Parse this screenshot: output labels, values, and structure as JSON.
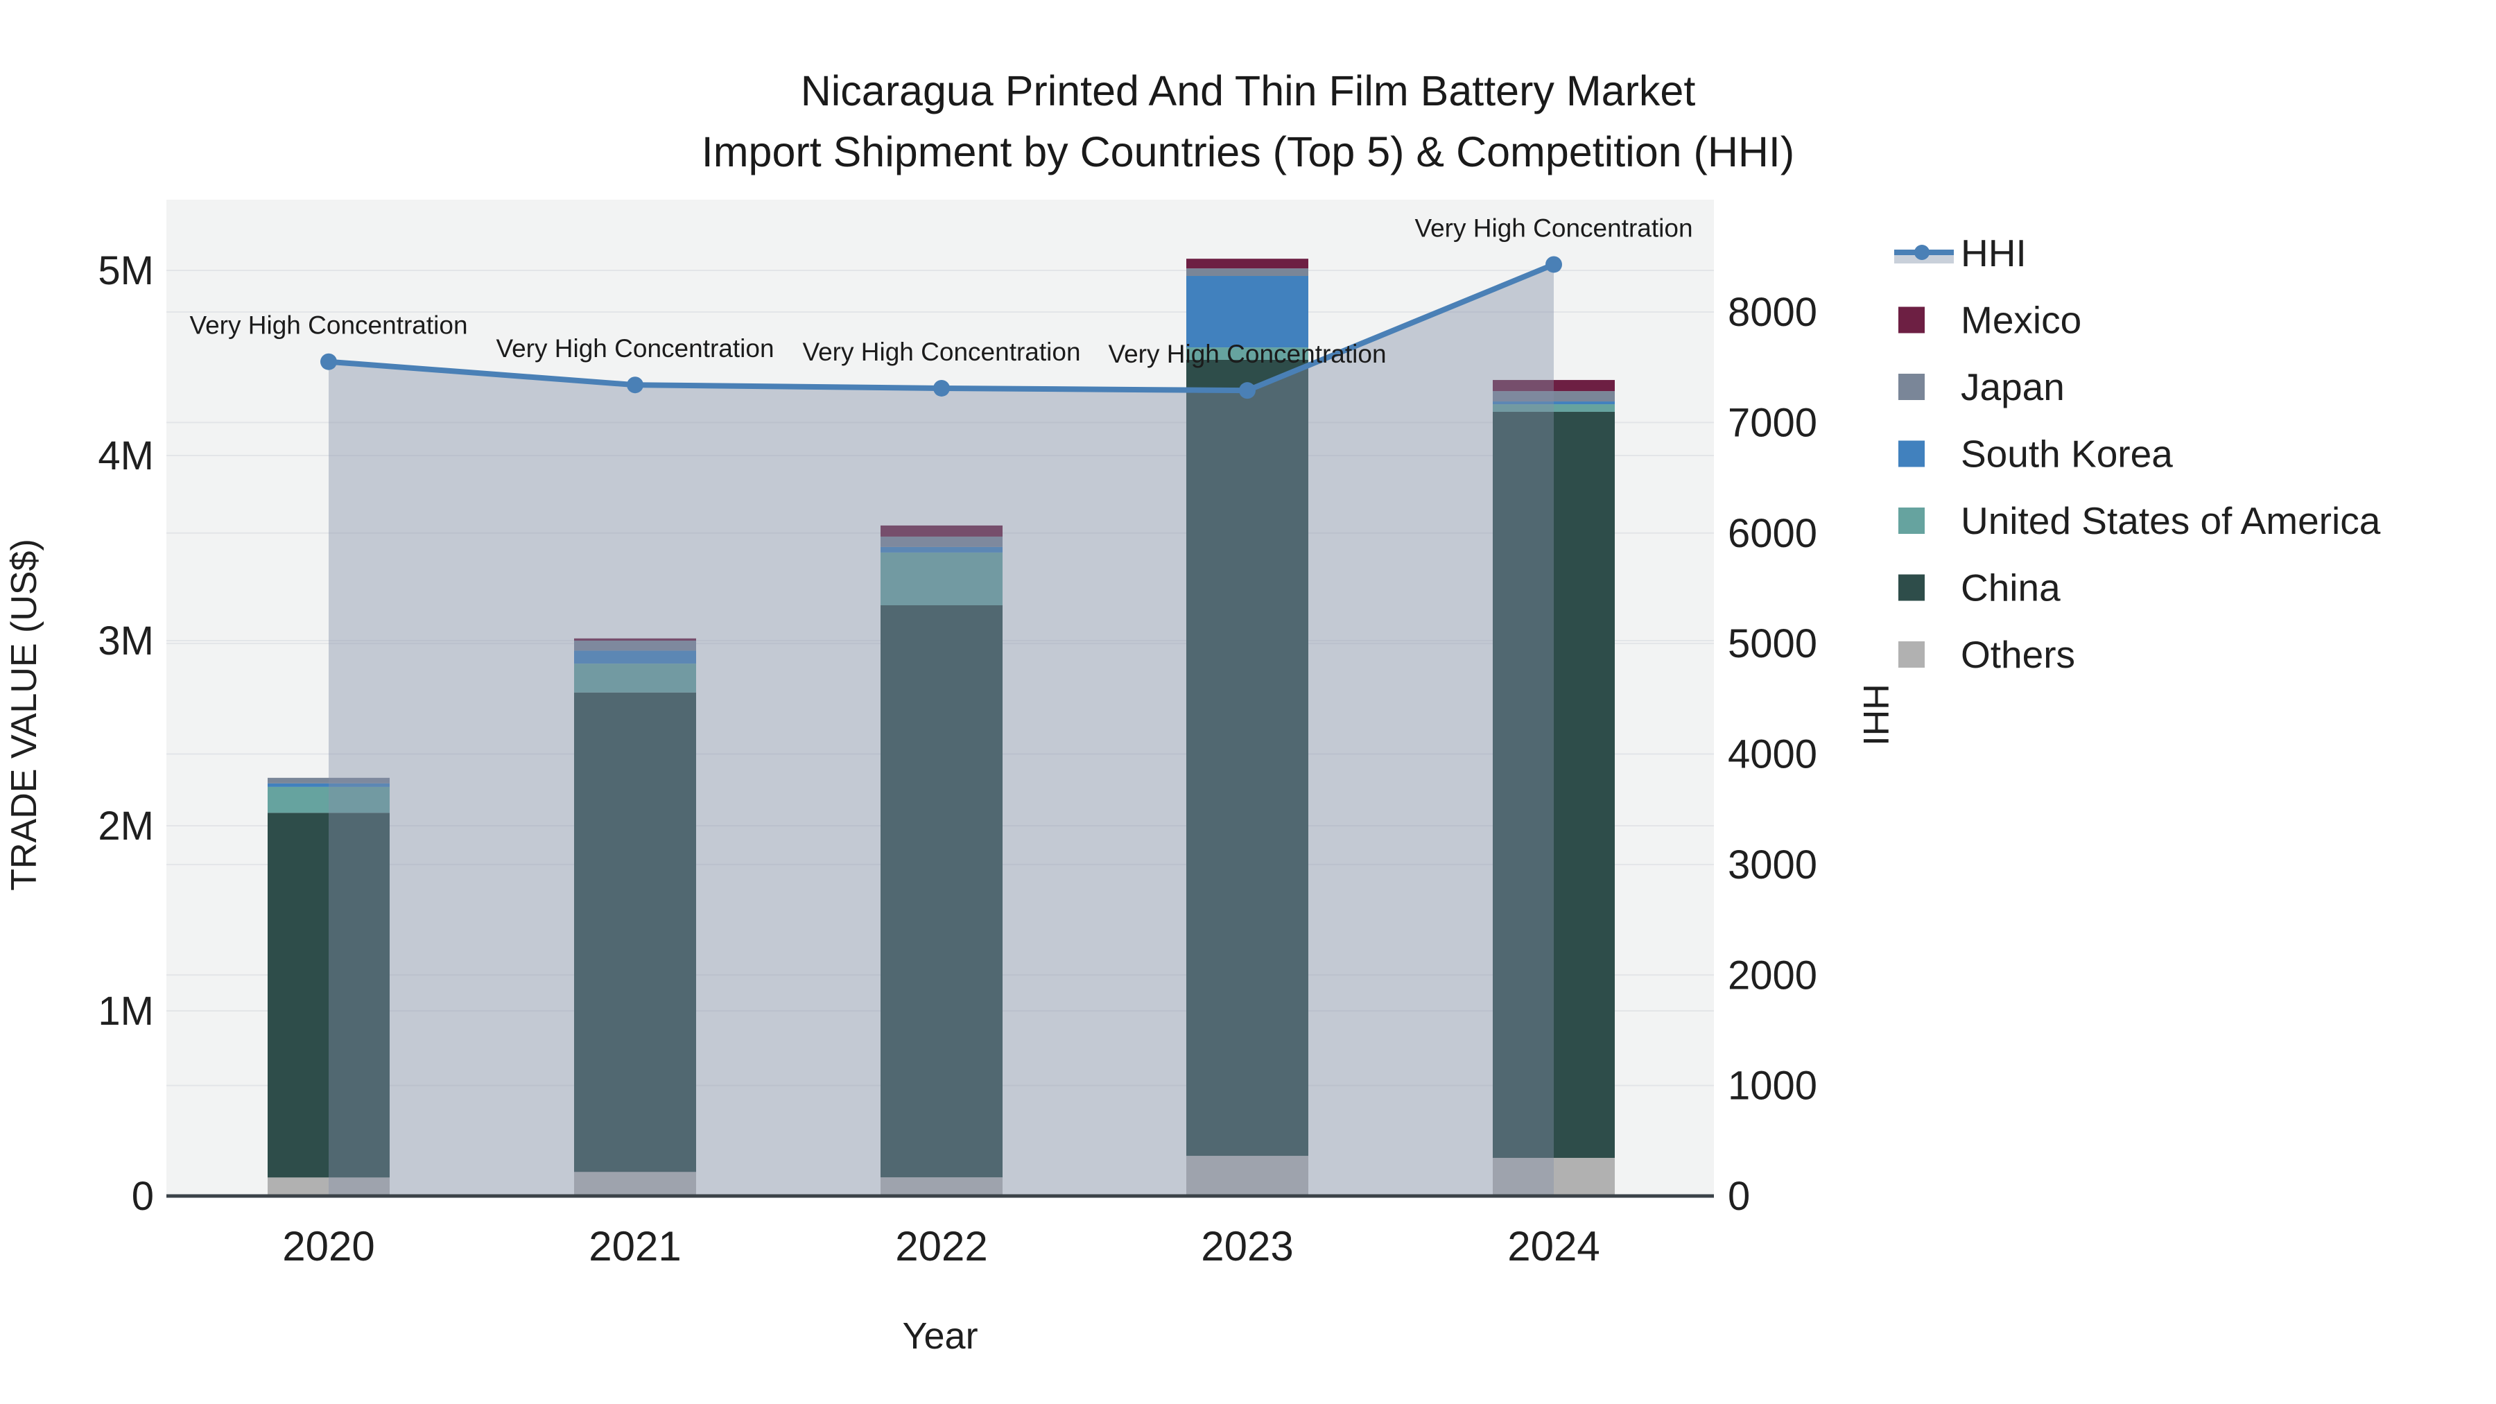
{
  "title": {
    "line1": "Nicaragua Printed And Thin Film Battery Market",
    "line2": "Import Shipment by Countries (Top 5) & Competition (HHI)"
  },
  "chart_data": {
    "type": "bar",
    "subtype": "stacked-bars-with-line-overlay",
    "categories": [
      "2020",
      "2021",
      "2022",
      "2023",
      "2024"
    ],
    "xlabel": "Year",
    "y_left": {
      "label": "TRADE VALUE (US$)",
      "tick_labels": [
        "0",
        "1M",
        "2M",
        "3M",
        "4M",
        "5M"
      ],
      "tick_values": [
        0,
        1000000,
        2000000,
        3000000,
        4000000,
        5000000
      ],
      "range": [
        0,
        5380000
      ],
      "grid": true
    },
    "y_right": {
      "label": "HHI",
      "tick_labels": [
        "0",
        "1000",
        "2000",
        "3000",
        "4000",
        "5000",
        "6000",
        "7000",
        "8000"
      ],
      "tick_values": [
        0,
        1000,
        2000,
        3000,
        4000,
        5000,
        6000,
        7000,
        8000
      ],
      "range": [
        0,
        9015
      ],
      "grid": true
    },
    "stack_order_bottom_to_top": [
      "Others",
      "China",
      "United States of America",
      "South Korea",
      "Japan",
      "Mexico"
    ],
    "series": [
      {
        "name": "Mexico",
        "color": "#6d1f43",
        "values": [
          0,
          12000,
          60000,
          52000,
          60000
        ]
      },
      {
        "name": "Japan",
        "color": "#7a8698",
        "values": [
          30000,
          54000,
          56000,
          41000,
          56000
        ]
      },
      {
        "name": "South Korea",
        "color": "#4181be",
        "values": [
          19000,
          70000,
          30000,
          386000,
          15000
        ]
      },
      {
        "name": "United States of America",
        "color": "#66a39f",
        "values": [
          140000,
          156000,
          285000,
          67000,
          41000
        ]
      },
      {
        "name": "China",
        "color": "#2e4d4a",
        "values": [
          1970000,
          2590000,
          3090000,
          4300000,
          4030000
        ]
      },
      {
        "name": "Others",
        "color": "#b1b1b1",
        "values": [
          100000,
          130000,
          101000,
          217000,
          206000
        ]
      }
    ],
    "hhi": {
      "name": "HHI",
      "line_color": "#4a80b6",
      "marker_color": "#4a80b6",
      "area_color": "rgba(132,143,168,0.42)",
      "values": [
        7550,
        7340,
        7310,
        7290,
        8430
      ],
      "annotations": [
        "Very High Concentration",
        "Very High Concentration",
        "Very High Concentration",
        "Very High Concentration",
        "Very High Concentration"
      ]
    },
    "legend": {
      "position": "right",
      "items": [
        "HHI",
        "Mexico",
        "Japan",
        "South Korea",
        "United States of America",
        "China",
        "Others"
      ]
    },
    "colors": {
      "plot_background": "#f2f3f3",
      "gridline": "#e3e5e8",
      "axis_line": "#3b4248",
      "text": "#1f1f1f"
    }
  }
}
